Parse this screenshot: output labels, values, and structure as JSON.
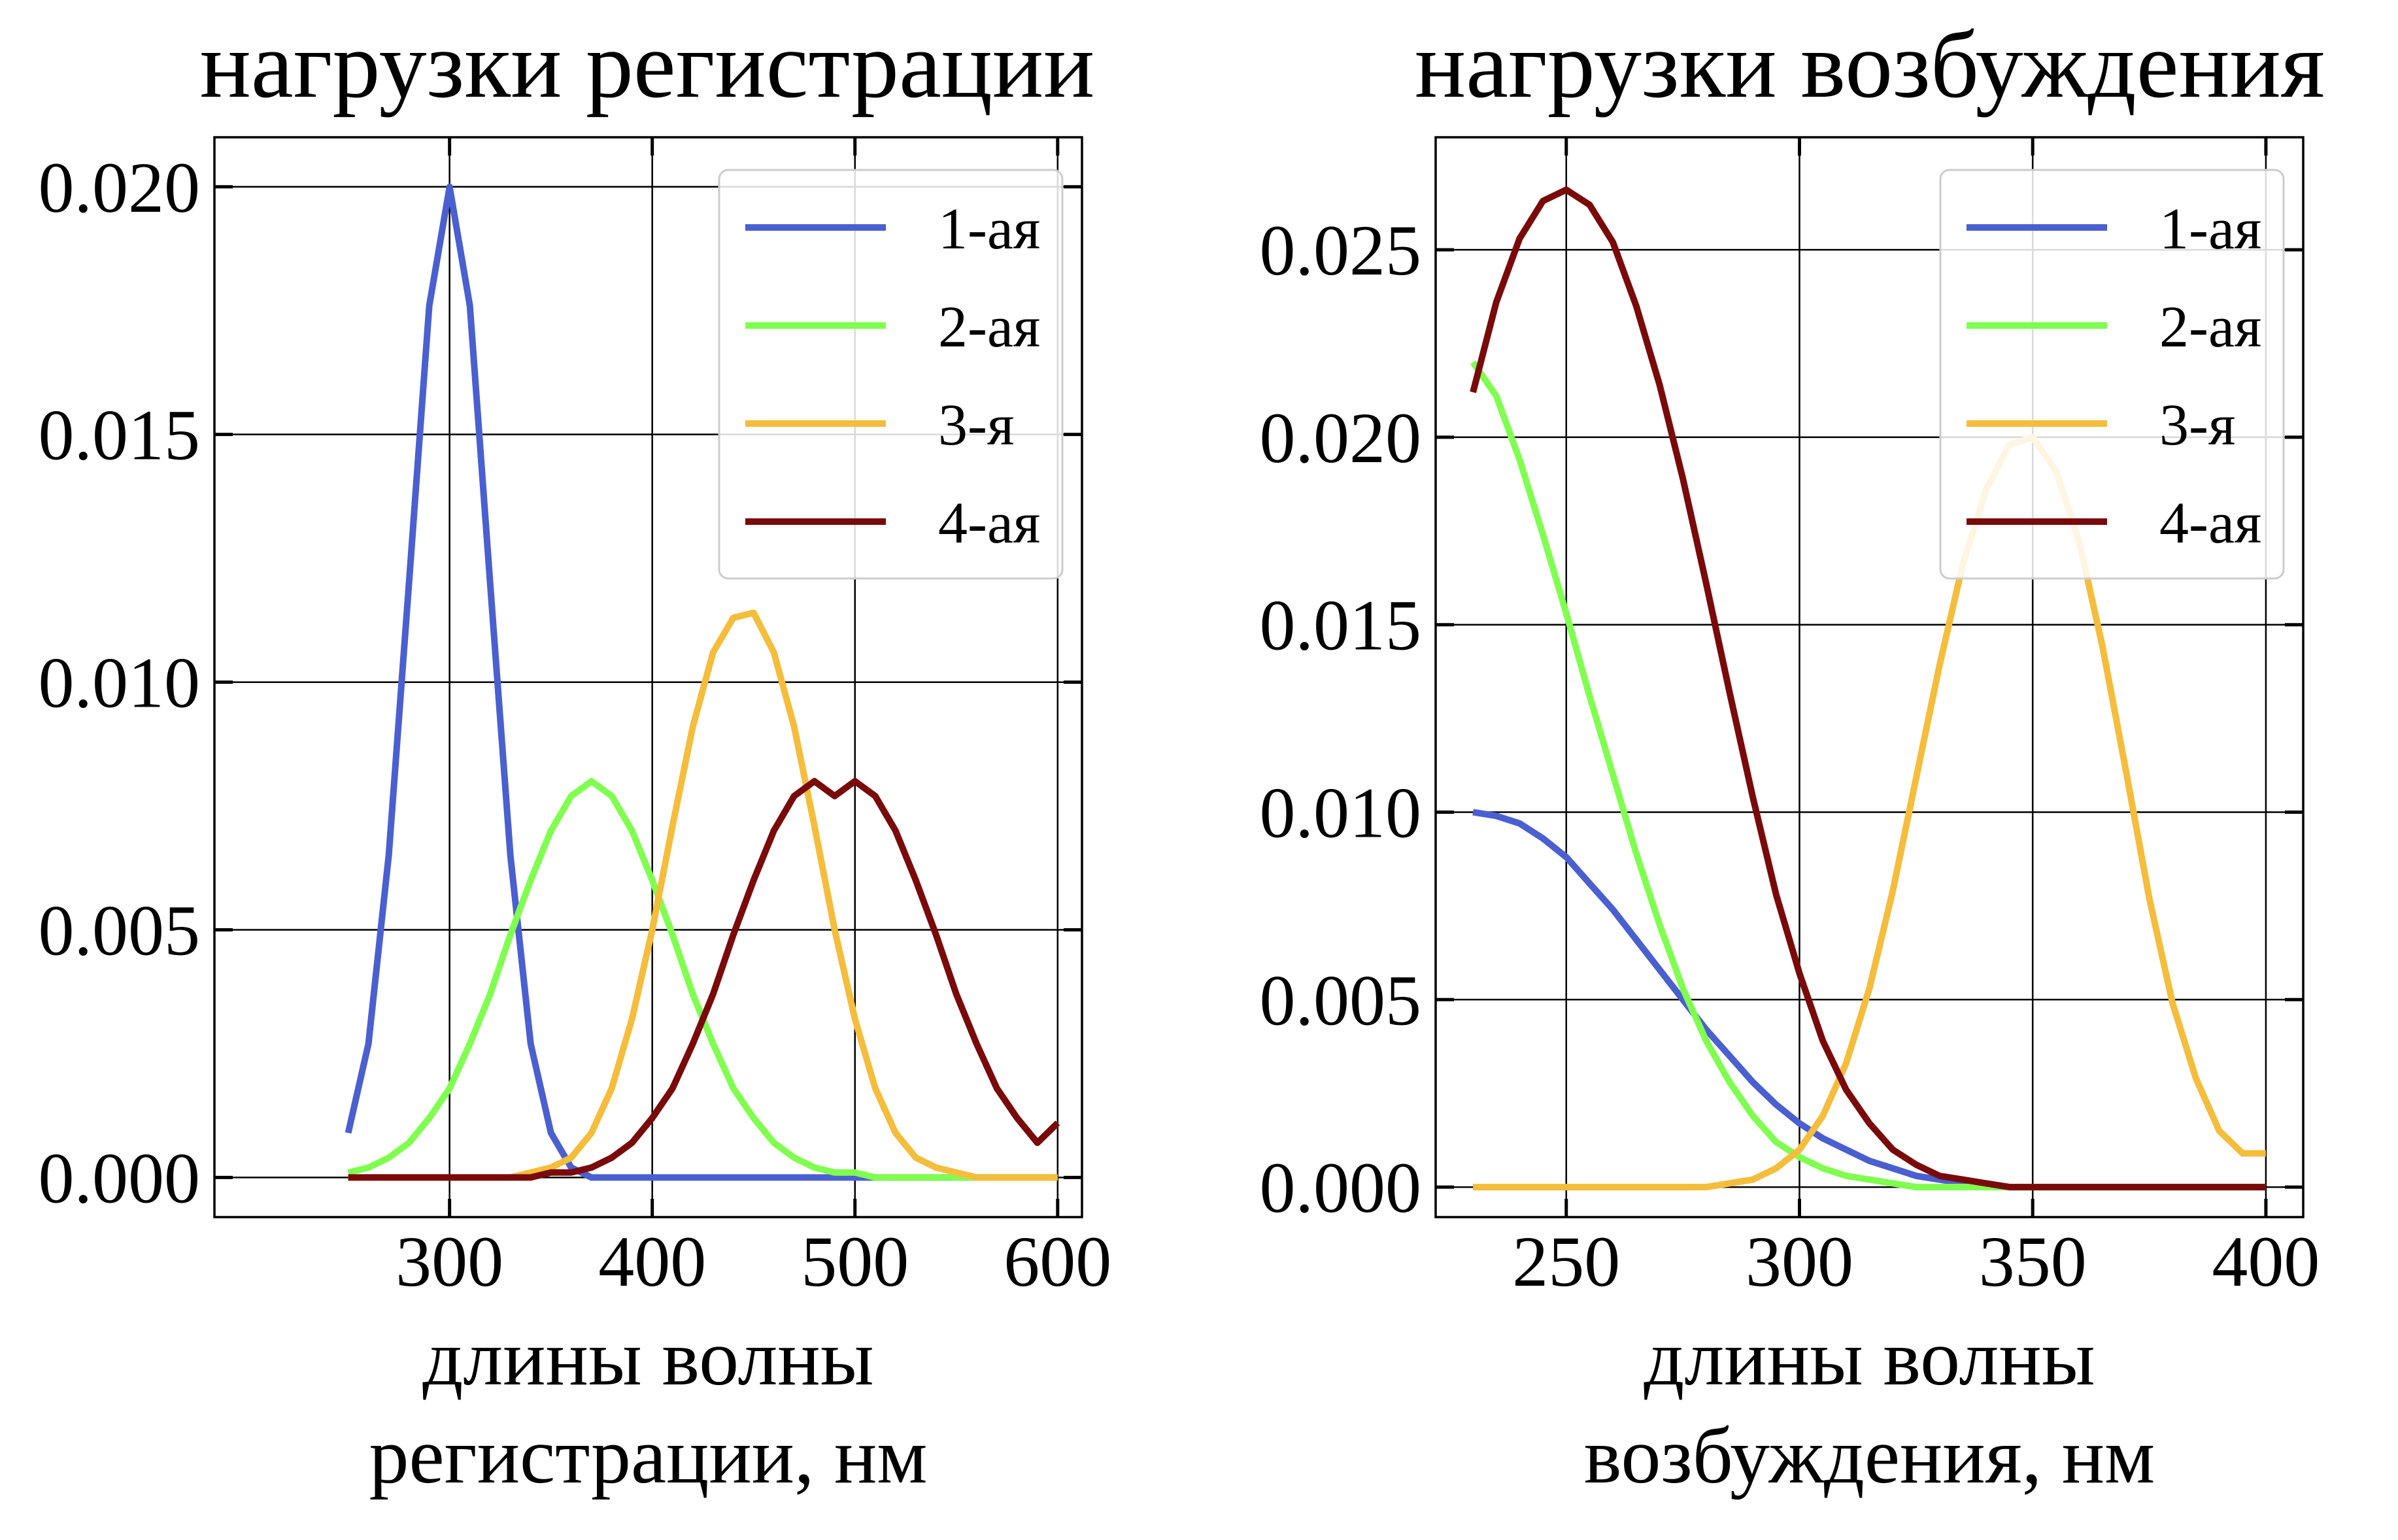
{
  "chart_data": [
    {
      "type": "line",
      "title": "нагрузки регистрации",
      "xlabel": [
        "длины волны",
        "регистрации, нм"
      ],
      "ylabel": "",
      "xlim": [
        184,
        612
      ],
      "ylim": [
        -0.0008,
        0.021
      ],
      "xticks": [
        300,
        400,
        500,
        600
      ],
      "xtick_labels": [
        "300",
        "400",
        "500",
        "600"
      ],
      "yticks": [
        0.0,
        0.005,
        0.01,
        0.015,
        0.02
      ],
      "ytick_labels": [
        "0.000",
        "0.005",
        "0.010",
        "0.015",
        "0.020"
      ],
      "grid": true,
      "legend_position": "top-right",
      "x": [
        250,
        260,
        270,
        280,
        290,
        300,
        310,
        320,
        330,
        340,
        350,
        360,
        370,
        380,
        390,
        400,
        410,
        420,
        430,
        440,
        450,
        460,
        470,
        480,
        490,
        500,
        510,
        520,
        530,
        540,
        550,
        560,
        570,
        580,
        590,
        600
      ],
      "series": [
        {
          "name": "1-ая",
          "color": "#4a5fd0",
          "values": [
            0.0009,
            0.0027,
            0.0065,
            0.012,
            0.0176,
            0.02,
            0.0176,
            0.012,
            0.0065,
            0.0027,
            0.0009,
            0.0002,
            0.0,
            0.0,
            0.0,
            0.0,
            0.0,
            0.0,
            0.0,
            0.0,
            0.0,
            0.0,
            0.0,
            0.0,
            0.0,
            0.0,
            0.0,
            0.0,
            0.0,
            0.0,
            0.0,
            0.0,
            0.0,
            0.0,
            0.0,
            0.0
          ]
        },
        {
          "name": "2-ая",
          "color": "#80ff50",
          "values": [
            0.0001,
            0.0002,
            0.0004,
            0.0007,
            0.0012,
            0.0018,
            0.0027,
            0.0037,
            0.0049,
            0.006,
            0.007,
            0.0077,
            0.008,
            0.0077,
            0.007,
            0.006,
            0.0049,
            0.0037,
            0.0027,
            0.0018,
            0.0012,
            0.0007,
            0.0004,
            0.0002,
            0.0001,
            0.0001,
            0.0,
            0.0,
            0.0,
            0.0,
            0.0,
            0.0,
            0.0,
            0.0,
            0.0,
            0.0
          ]
        },
        {
          "name": "3-я",
          "color": "#f5bd3c",
          "values": [
            0.0,
            0.0,
            0.0,
            0.0,
            0.0,
            0.0,
            0.0,
            0.0,
            0.0,
            0.0001,
            0.0002,
            0.0004,
            0.0009,
            0.0018,
            0.0032,
            0.005,
            0.0071,
            0.0091,
            0.0106,
            0.0113,
            0.0114,
            0.0106,
            0.0091,
            0.0071,
            0.005,
            0.0032,
            0.0018,
            0.0009,
            0.0004,
            0.0002,
            0.0001,
            0.0,
            0.0,
            0.0,
            0.0,
            0.0
          ]
        },
        {
          "name": "4-ая",
          "color": "#7a0a0a",
          "values": [
            0.0,
            0.0,
            0.0,
            0.0,
            0.0,
            0.0,
            0.0,
            0.0,
            0.0,
            0.0,
            0.0001,
            0.0001,
            0.0002,
            0.0004,
            0.0007,
            0.0012,
            0.0018,
            0.0027,
            0.0037,
            0.0049,
            0.006,
            0.007,
            0.0077,
            0.008,
            0.0077,
            0.008,
            0.0077,
            0.007,
            0.006,
            0.0049,
            0.0037,
            0.0027,
            0.0018,
            0.0012,
            0.0007,
            0.0011
          ]
        }
      ]
    },
    {
      "type": "line",
      "title": "нагрузки возбуждения",
      "xlabel": [
        "длины волны",
        "возбуждения, нм"
      ],
      "ylabel": "",
      "xlim": [
        222,
        408
      ],
      "ylim": [
        -0.0008,
        0.028
      ],
      "xticks": [
        250,
        300,
        350,
        400
      ],
      "xtick_labels": [
        "250",
        "300",
        "350",
        "400"
      ],
      "yticks": [
        0.0,
        0.005,
        0.01,
        0.015,
        0.02,
        0.025
      ],
      "ytick_labels": [
        "0.000",
        "0.005",
        "0.010",
        "0.015",
        "0.020",
        "0.025"
      ],
      "grid": true,
      "legend_position": "top-right",
      "x": [
        230,
        235,
        240,
        245,
        250,
        255,
        260,
        265,
        270,
        275,
        280,
        285,
        290,
        295,
        300,
        305,
        310,
        315,
        320,
        325,
        330,
        335,
        340,
        345,
        350,
        355,
        360,
        365,
        370,
        375,
        380,
        385,
        390,
        395,
        400
      ],
      "series": [
        {
          "name": "1-ая",
          "color": "#4a5fd0",
          "values": [
            0.01,
            0.0099,
            0.0097,
            0.0093,
            0.0088,
            0.0081,
            0.0074,
            0.0066,
            0.0058,
            0.005,
            0.0042,
            0.0035,
            0.0028,
            0.0022,
            0.0017,
            0.0013,
            0.001,
            0.0007,
            0.0005,
            0.0003,
            0.0002,
            0.0001,
            0.0001,
            0.0,
            0.0,
            0.0,
            0.0,
            0.0,
            0.0,
            0.0,
            0.0,
            0.0,
            0.0,
            0.0,
            0.0
          ]
        },
        {
          "name": "2-ая",
          "color": "#80ff50",
          "values": [
            0.022,
            0.0211,
            0.0194,
            0.0174,
            0.0153,
            0.0131,
            0.011,
            0.0089,
            0.007,
            0.0053,
            0.0039,
            0.0028,
            0.0019,
            0.0012,
            0.0008,
            0.0005,
            0.0003,
            0.0002,
            0.0001,
            0.0,
            0.0,
            0.0,
            0.0,
            0.0,
            0.0,
            0.0,
            0.0,
            0.0,
            0.0,
            0.0,
            0.0,
            0.0,
            0.0,
            0.0,
            0.0
          ]
        },
        {
          "name": "3-я",
          "color": "#f5bd3c",
          "values": [
            0.0,
            0.0,
            0.0,
            0.0,
            0.0,
            0.0,
            0.0,
            0.0,
            0.0,
            0.0,
            0.0,
            0.0001,
            0.0002,
            0.0005,
            0.001,
            0.0019,
            0.0033,
            0.0053,
            0.0079,
            0.0109,
            0.0139,
            0.0166,
            0.0186,
            0.0198,
            0.02,
            0.0191,
            0.0172,
            0.0144,
            0.0111,
            0.0077,
            0.0049,
            0.0029,
            0.0015,
            0.0009,
            0.0009
          ]
        },
        {
          "name": "4-ая",
          "color": "#7a0a0a",
          "values": [
            0.0212,
            0.0236,
            0.0253,
            0.0263,
            0.0266,
            0.0262,
            0.0252,
            0.0235,
            0.0214,
            0.0189,
            0.0161,
            0.0132,
            0.0104,
            0.0078,
            0.0057,
            0.0039,
            0.0026,
            0.0017,
            0.001,
            0.0006,
            0.0003,
            0.0002,
            0.0001,
            0.0,
            0.0,
            0.0,
            0.0,
            0.0,
            0.0,
            0.0,
            0.0,
            0.0,
            0.0,
            0.0,
            0.0
          ]
        }
      ]
    }
  ]
}
